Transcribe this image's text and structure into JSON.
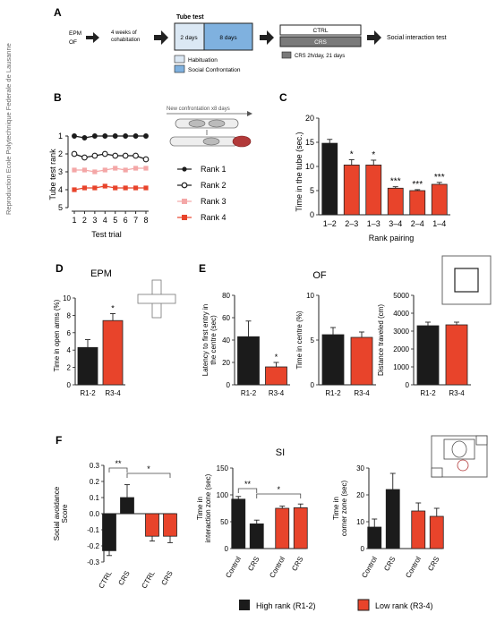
{
  "sidebar_text": "Reproduction Ecole Polytechnique Federale de Lausanne",
  "colors": {
    "high": "#1b1b1b",
    "low": "#e8442b",
    "orange": "#f6c38c",
    "habituation": "#dbe8f4",
    "social": "#7fb1df",
    "gray": "#7a7a7a",
    "pink": "#f4a7a7",
    "red": "#e8442b"
  },
  "panelA": {
    "letter": "A",
    "tests": [
      "EPM",
      "OF"
    ],
    "cohab": [
      "4 weeks of",
      "cohabitation"
    ],
    "tube_title": "Tube test",
    "days": [
      "2 days",
      "8 days"
    ],
    "ctrl": "CTRL",
    "crs": "CRS",
    "crs_note": "CRS 2h/day, 21 days",
    "si": "Social interaction test",
    "legend": [
      "Habituation",
      "Social Confrontation"
    ]
  },
  "panelB": {
    "letter": "B",
    "confront": "New confrontation x8 days",
    "chart_data": {
      "type": "line",
      "xlabel": "Test trial",
      "ylabel": "Tube test rank",
      "x": [
        1,
        2,
        3,
        4,
        5,
        6,
        7,
        8
      ],
      "yticks": [
        1,
        2,
        3,
        4,
        5
      ],
      "ylim": [
        1,
        5
      ],
      "y_inverted": true,
      "series": [
        {
          "name": "Rank 1",
          "values": [
            1.0,
            1.1,
            1.0,
            1.0,
            1.0,
            1.0,
            1.0,
            1.0
          ]
        },
        {
          "name": "Rank 2",
          "values": [
            2.0,
            2.2,
            2.1,
            2.0,
            2.1,
            2.1,
            2.1,
            2.3
          ]
        },
        {
          "name": "Rank 3",
          "values": [
            2.9,
            2.9,
            3.0,
            2.9,
            2.8,
            2.9,
            2.8,
            2.8
          ]
        },
        {
          "name": "Rank 4",
          "values": [
            4.0,
            3.9,
            3.9,
            3.8,
            3.9,
            3.9,
            3.9,
            3.9
          ]
        }
      ]
    }
  },
  "panelC": {
    "letter": "C",
    "chart_data": {
      "type": "bar",
      "xlabel": "Rank pairing",
      "ylabel": "Time in the tube (sec.)",
      "categories": [
        "1–2",
        "2–3",
        "1–3",
        "3–4",
        "2–4",
        "1–4"
      ],
      "values": [
        14.8,
        10.3,
        10.3,
        5.5,
        5.0,
        6.3
      ],
      "errors": [
        0.8,
        1.1,
        1.0,
        0.3,
        0.2,
        0.4
      ],
      "stars": [
        "",
        "*",
        "*",
        "***",
        "***",
        "***"
      ],
      "ylim": [
        0,
        20
      ],
      "yticks": [
        0,
        5,
        10,
        15,
        20
      ]
    }
  },
  "panelD": {
    "letter": "D",
    "title": "EPM",
    "chart_data": {
      "type": "bar",
      "ylabel": "Time in open arms (%)",
      "categories": [
        "R1-2",
        "R3-4"
      ],
      "values": [
        4.3,
        7.4
      ],
      "errors": [
        0.9,
        0.8
      ],
      "stars": [
        "",
        "*"
      ],
      "ylim": [
        0,
        10
      ],
      "yticks": [
        0,
        2,
        4,
        6,
        8,
        10
      ]
    }
  },
  "panelE": {
    "letter": "E",
    "title": "OF",
    "charts": [
      {
        "type": "bar",
        "ylabel": "Latency to first entry in the centre (sec)",
        "categories": [
          "R1-2",
          "R3-4"
        ],
        "values": [
          43,
          16
        ],
        "errors": [
          14,
          4
        ],
        "stars": [
          "",
          "*"
        ],
        "ylim": [
          0,
          80
        ],
        "yticks": [
          0,
          20,
          40,
          60,
          80
        ]
      },
      {
        "type": "bar",
        "ylabel": "Time in centre (%)",
        "categories": [
          "R1-2",
          "R3-4"
        ],
        "values": [
          5.6,
          5.3
        ],
        "errors": [
          0.8,
          0.6
        ],
        "stars": [
          "",
          ""
        ],
        "ylim": [
          0,
          10
        ],
        "yticks": [
          0,
          5,
          10
        ]
      },
      {
        "type": "bar",
        "ylabel": "Distance traveled (cm)",
        "categories": [
          "R1-2",
          "R3-4"
        ],
        "values": [
          3300,
          3350
        ],
        "errors": [
          200,
          150
        ],
        "stars": [
          "",
          ""
        ],
        "ylim": [
          0,
          5000
        ],
        "yticks": [
          0,
          1000,
          2000,
          3000,
          4000,
          5000
        ]
      }
    ]
  },
  "panelF": {
    "letter": "F",
    "title": "SI",
    "chart_data": [
      {
        "type": "bar",
        "ylabel": "Social avoidance Score",
        "categories": [
          "CTRL",
          "CRS",
          "CTRL",
          "CRS"
        ],
        "groups": [
          "high",
          "high",
          "low",
          "low"
        ],
        "values": [
          -0.23,
          0.1,
          -0.14,
          -0.14
        ],
        "errors": [
          0.03,
          0.08,
          0.03,
          0.04
        ],
        "ylim": [
          -0.3,
          0.3
        ],
        "yticks": [
          -0.3,
          -0.2,
          -0.1,
          0.0,
          0.1,
          0.2,
          0.3
        ],
        "sig": [
          {
            "from": 0,
            "to": 1,
            "label": "**"
          },
          {
            "from": 1,
            "to": 3,
            "label": "*"
          }
        ]
      },
      {
        "type": "bar",
        "ylabel": "Time in interaction zone (sec)",
        "categories": [
          "Control",
          "CRS",
          "Control",
          "CRS"
        ],
        "groups": [
          "high",
          "high",
          "low",
          "low"
        ],
        "values": [
          92,
          46,
          75,
          76
        ],
        "errors": [
          5,
          7,
          4,
          7
        ],
        "ylim": [
          0,
          150
        ],
        "yticks": [
          0,
          50,
          100,
          150
        ],
        "sig": [
          {
            "from": 0,
            "to": 1,
            "label": "**"
          },
          {
            "from": 1,
            "to": 3,
            "label": "*"
          }
        ]
      },
      {
        "type": "bar",
        "ylabel": "Time in corner zone (sec)",
        "categories": [
          "Control",
          "CRS",
          "Control",
          "CRS"
        ],
        "groups": [
          "high",
          "high",
          "low",
          "low"
        ],
        "values": [
          8,
          22,
          14,
          12
        ],
        "errors": [
          3,
          6,
          3,
          3
        ],
        "ylim": [
          0,
          30
        ],
        "yticks": [
          0,
          10,
          20,
          30
        ],
        "sig": []
      }
    ],
    "legend": [
      "High rank (R1-2)",
      "Low rank (R3-4)"
    ]
  }
}
